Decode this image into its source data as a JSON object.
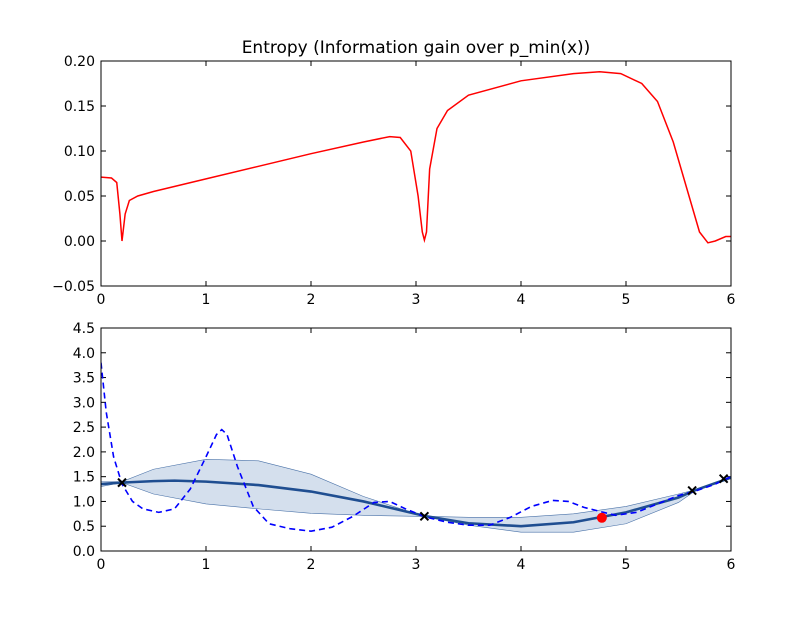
{
  "chart_data": [
    {
      "type": "line",
      "title": "Entropy (Information gain over p_min(x))",
      "xlabel": "",
      "ylabel": "",
      "xlim": [
        0,
        6
      ],
      "ylim": [
        -0.05,
        0.2
      ],
      "xticks": [
        "0",
        "1",
        "2",
        "3",
        "4",
        "5",
        "6"
      ],
      "yticks": [
        "−0.05",
        "0.00",
        "0.05",
        "0.10",
        "0.15",
        "0.20"
      ],
      "grid": false,
      "series": [
        {
          "color": "#ff0000",
          "x": [
            0,
            0.1,
            0.15,
            0.18,
            0.2,
            0.23,
            0.27,
            0.35,
            0.5,
            1.0,
            1.5,
            2.0,
            2.5,
            2.75,
            2.85,
            2.95,
            3.02,
            3.06,
            3.08,
            3.1,
            3.13,
            3.2,
            3.3,
            3.5,
            4.0,
            4.5,
            4.75,
            4.95,
            5.15,
            5.3,
            5.45,
            5.6,
            5.7,
            5.78,
            5.85,
            5.95,
            6.0
          ],
          "y": [
            0.071,
            0.07,
            0.065,
            0.03,
            0.0,
            0.03,
            0.045,
            0.05,
            0.055,
            0.069,
            0.083,
            0.097,
            0.11,
            0.116,
            0.115,
            0.1,
            0.05,
            0.01,
            0.001,
            0.01,
            0.08,
            0.125,
            0.145,
            0.162,
            0.178,
            0.186,
            0.188,
            0.186,
            0.175,
            0.155,
            0.11,
            0.05,
            0.01,
            -0.002,
            0.0,
            0.005,
            0.005
          ]
        }
      ]
    },
    {
      "type": "line",
      "xlabel": "",
      "ylabel": "",
      "xlim": [
        0,
        6
      ],
      "ylim": [
        0,
        4.5
      ],
      "xticks": [
        "0",
        "1",
        "2",
        "3",
        "4",
        "5",
        "6"
      ],
      "yticks": [
        "0.0",
        "0.5",
        "1.0",
        "1.5",
        "2.0",
        "2.5",
        "3.0",
        "3.5",
        "4.0",
        "4.5"
      ],
      "grid": false,
      "band": {
        "color": "#b0c4de",
        "x": [
          0,
          0.2,
          0.5,
          1.0,
          1.5,
          2.0,
          2.5,
          3.0,
          3.1,
          3.5,
          4.0,
          4.5,
          5.0,
          5.5,
          5.65,
          5.95,
          6.0
        ],
        "upper": [
          1.4,
          1.4,
          1.65,
          1.85,
          1.82,
          1.55,
          1.1,
          0.75,
          0.7,
          0.68,
          0.68,
          0.75,
          0.9,
          1.15,
          1.23,
          1.45,
          1.48
        ],
        "lower": [
          1.3,
          1.38,
          1.15,
          0.95,
          0.85,
          0.76,
          0.72,
          0.7,
          0.69,
          0.52,
          0.38,
          0.38,
          0.55,
          0.98,
          1.2,
          1.45,
          1.46
        ]
      },
      "series": [
        {
          "style": "solid",
          "color": "#1f4e91",
          "x": [
            0,
            0.2,
            0.5,
            0.7,
            1.0,
            1.5,
            2.0,
            2.5,
            3.0,
            3.1,
            3.5,
            4.0,
            4.5,
            5.0,
            5.5,
            5.65,
            6.0
          ],
          "y": [
            1.35,
            1.38,
            1.41,
            1.42,
            1.4,
            1.33,
            1.2,
            1.0,
            0.75,
            0.7,
            0.56,
            0.5,
            0.58,
            0.78,
            1.08,
            1.22,
            1.48
          ]
        },
        {
          "style": "dashed",
          "color": "#0000ff",
          "x": [
            0,
            0.05,
            0.12,
            0.2,
            0.3,
            0.4,
            0.55,
            0.7,
            0.85,
            1.0,
            1.1,
            1.15,
            1.2,
            1.3,
            1.45,
            1.6,
            1.8,
            2.0,
            2.2,
            2.4,
            2.6,
            2.75,
            2.9,
            3.1,
            3.3,
            3.5,
            3.7,
            3.9,
            4.1,
            4.3,
            4.45,
            4.6,
            4.75,
            4.9,
            5.1,
            5.3,
            5.5,
            5.65,
            5.85,
            6.0
          ],
          "y": [
            3.8,
            2.8,
            1.9,
            1.35,
            1.0,
            0.85,
            0.78,
            0.85,
            1.25,
            1.9,
            2.35,
            2.45,
            2.35,
            1.7,
            0.9,
            0.55,
            0.45,
            0.4,
            0.48,
            0.7,
            0.98,
            1.0,
            0.85,
            0.68,
            0.58,
            0.52,
            0.52,
            0.68,
            0.9,
            1.02,
            1.0,
            0.88,
            0.8,
            0.72,
            0.78,
            0.95,
            1.12,
            1.2,
            1.35,
            1.5
          ]
        }
      ],
      "observations": {
        "marker": "x",
        "color": "#000000",
        "x": [
          0.2,
          3.08,
          5.63,
          5.93
        ],
        "y": [
          1.38,
          0.7,
          1.22,
          1.46
        ]
      },
      "next_point": {
        "marker": "circle",
        "color": "#ff0000",
        "x": 4.77,
        "y": 0.67
      }
    }
  ]
}
